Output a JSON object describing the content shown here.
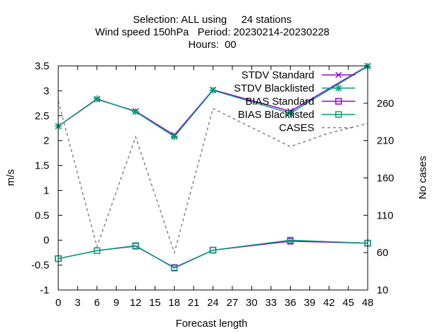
{
  "chart_data": {
    "type": "line",
    "title_lines": [
      "Selection: ALL using     24 stations",
      "Wind speed 150hPa   Period: 20230214-20230228",
      "Hours:  00"
    ],
    "xlabel": "Forecast length",
    "ylabel": "m/s",
    "y2label": "No cases",
    "xlim": [
      0,
      48
    ],
    "ylim": [
      -1,
      3.5
    ],
    "y2lim": [
      10,
      310
    ],
    "xticks": [
      0,
      3,
      6,
      9,
      12,
      15,
      18,
      21,
      24,
      27,
      30,
      33,
      36,
      39,
      42,
      45,
      48
    ],
    "yticks": [
      -1,
      -0.5,
      0,
      0.5,
      1,
      1.5,
      2,
      2.5,
      3,
      3.5
    ],
    "y2ticks": [
      10,
      60,
      110,
      160,
      210,
      260
    ],
    "legend_position": "top-right",
    "grid": false,
    "series": [
      {
        "name": "STDV Standard",
        "axis": "y1",
        "color": "#9400d3",
        "marker": "x",
        "dash": false,
        "x": [
          0,
          6,
          12,
          18,
          24,
          36,
          48
        ],
        "values": [
          2.29,
          2.83,
          2.59,
          2.11,
          3.02,
          2.59,
          3.5
        ]
      },
      {
        "name": "STDV Blacklisted",
        "axis": "y1",
        "color": "#009e73",
        "marker": "star",
        "dash": false,
        "x": [
          0,
          6,
          12,
          18,
          24,
          36,
          48
        ],
        "values": [
          2.29,
          2.84,
          2.58,
          2.08,
          3.01,
          2.55,
          3.49
        ]
      },
      {
        "name": "BIAS Standard",
        "axis": "y1",
        "color": "#9400d3",
        "marker": "square",
        "dash": false,
        "x": [
          0,
          6,
          12,
          18,
          24,
          36,
          48
        ],
        "values": [
          -0.37,
          -0.21,
          -0.12,
          -0.55,
          -0.2,
          -0.02,
          -0.06
        ]
      },
      {
        "name": "BIAS Blacklisted",
        "axis": "y1",
        "color": "#009e73",
        "marker": "square",
        "dash": false,
        "x": [
          0,
          6,
          12,
          18,
          24,
          36,
          48
        ],
        "values": [
          -0.37,
          -0.21,
          -0.11,
          -0.56,
          -0.2,
          0.0,
          -0.06
        ]
      },
      {
        "name": "CASES",
        "axis": "y2",
        "color": "#808080",
        "marker": "none",
        "dash": true,
        "x": [
          0,
          6,
          12,
          18,
          24,
          36,
          42,
          48
        ],
        "values": [
          263,
          68,
          215,
          60,
          253,
          202,
          220,
          233
        ]
      }
    ]
  }
}
